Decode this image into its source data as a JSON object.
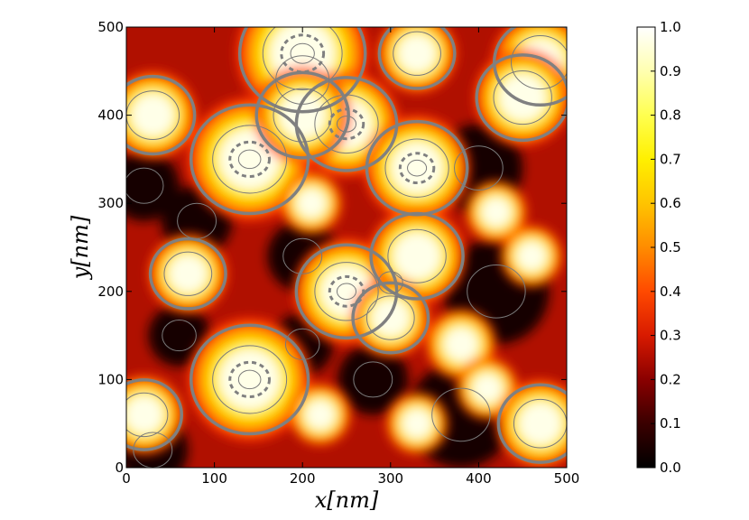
{
  "chart_data": {
    "type": "heatmap",
    "title": "",
    "xlabel": "x[nm]",
    "ylabel": "y[nm]",
    "xlim": [
      0,
      500
    ],
    "ylim": [
      0,
      500
    ],
    "xticks": [
      "0",
      "100",
      "200",
      "300",
      "400",
      "500"
    ],
    "yticks": [
      "0",
      "100",
      "200",
      "300",
      "400",
      "500"
    ],
    "colorbar": {
      "range": [
        0.0,
        1.0
      ],
      "ticks": [
        "0.0",
        "0.1",
        "0.2",
        "0.3",
        "0.4",
        "0.5",
        "0.6",
        "0.7",
        "0.8",
        "0.9",
        "1.0"
      ],
      "colormap": [
        "#000000",
        "#3a0000",
        "#8a0000",
        "#d81a00",
        "#ff4a00",
        "#ff8c00",
        "#ffc400",
        "#fff000",
        "#ffff80",
        "#ffffff"
      ]
    },
    "grid": false,
    "contour_colors": {
      "thin": "#7a7a7a",
      "thick": "#808080"
    },
    "bright_blobs": [
      {
        "x": 200,
        "y": 470,
        "r": 75
      },
      {
        "x": 330,
        "y": 470,
        "r": 45
      },
      {
        "x": 470,
        "y": 460,
        "r": 55
      },
      {
        "x": 30,
        "y": 400,
        "r": 50
      },
      {
        "x": 140,
        "y": 350,
        "r": 70
      },
      {
        "x": 250,
        "y": 390,
        "r": 60
      },
      {
        "x": 200,
        "y": 400,
        "r": 55
      },
      {
        "x": 330,
        "y": 340,
        "r": 60
      },
      {
        "x": 450,
        "y": 420,
        "r": 55
      },
      {
        "x": 70,
        "y": 220,
        "r": 45
      },
      {
        "x": 250,
        "y": 200,
        "r": 60
      },
      {
        "x": 330,
        "y": 240,
        "r": 55
      },
      {
        "x": 300,
        "y": 170,
        "r": 45
      },
      {
        "x": 140,
        "y": 100,
        "r": 70
      },
      {
        "x": 380,
        "y": 140,
        "r": 40
      },
      {
        "x": 410,
        "y": 90,
        "r": 35
      },
      {
        "x": 20,
        "y": 60,
        "r": 45
      },
      {
        "x": 470,
        "y": 50,
        "r": 50
      },
      {
        "x": 220,
        "y": 60,
        "r": 35
      },
      {
        "x": 330,
        "y": 50,
        "r": 35
      },
      {
        "x": 460,
        "y": 240,
        "r": 35
      },
      {
        "x": 210,
        "y": 300,
        "r": 35
      },
      {
        "x": 420,
        "y": 290,
        "r": 35
      }
    ],
    "dark_blobs": [
      {
        "x": 200,
        "y": 440,
        "r": 55
      },
      {
        "x": 80,
        "y": 280,
        "r": 40
      },
      {
        "x": 200,
        "y": 240,
        "r": 40
      },
      {
        "x": 420,
        "y": 200,
        "r": 60
      },
      {
        "x": 200,
        "y": 140,
        "r": 35
      },
      {
        "x": 60,
        "y": 150,
        "r": 35
      },
      {
        "x": 380,
        "y": 60,
        "r": 60
      },
      {
        "x": 30,
        "y": 20,
        "r": 40
      },
      {
        "x": 280,
        "y": 100,
        "r": 40
      },
      {
        "x": 300,
        "y": 210,
        "r": 25
      },
      {
        "x": 400,
        "y": 340,
        "r": 50
      },
      {
        "x": 20,
        "y": 320,
        "r": 40
      }
    ]
  }
}
